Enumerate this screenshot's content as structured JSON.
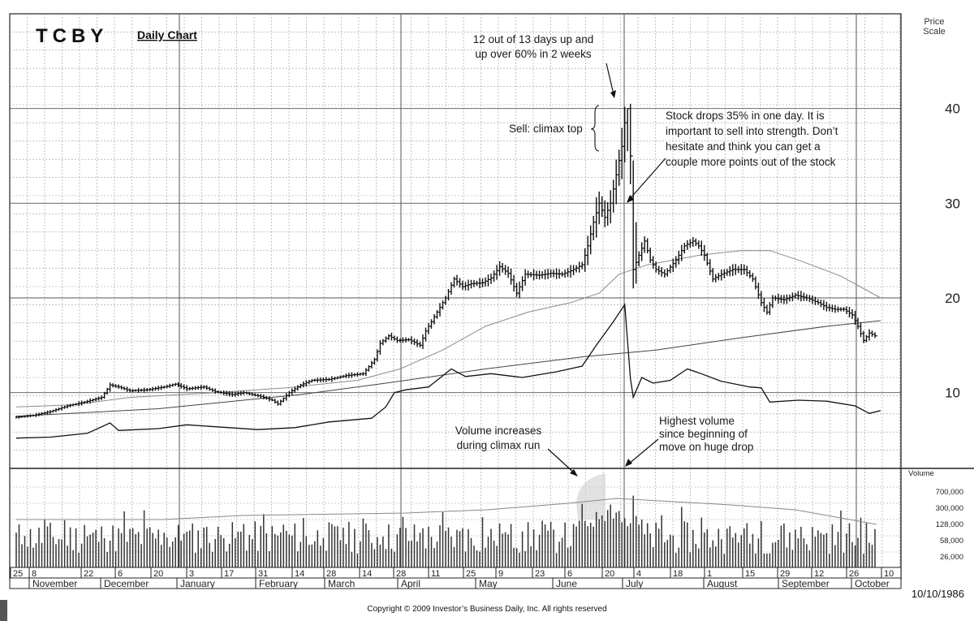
{
  "header": {
    "ticker": "TCBY",
    "chart_name": "Daily Chart",
    "price_scale_label": "Price Scale",
    "volume_label": "Volume"
  },
  "footer": {
    "date_stamp": "10/10/1986",
    "copyright": "Copyright © 2009 Investor’s Business Daily, Inc. All rights reserved"
  },
  "annotations": {
    "climax_note": [
      "12 out of 13 days up and",
      "up over 60% in 2 weeks"
    ],
    "sell_note": "Sell: climax top",
    "drop_note": [
      "Stock drops 35% in one day. It is",
      "important to sell into strength. Don’t",
      "hesitate and think you can get a",
      "couple more points out of the stock"
    ],
    "volume_note": [
      "Volume increases",
      "during climax run"
    ],
    "highest_volume_note": [
      "Highest volume",
      "since beginning of",
      "move on huge drop"
    ]
  },
  "chart_data": {
    "type": "ohlc-volume",
    "title": "TCBY Daily Chart",
    "price_axis": {
      "label": "Price Scale",
      "ticks": [
        10,
        20,
        30,
        40
      ],
      "range": [
        2,
        50
      ]
    },
    "volume_axis": {
      "label": "Volume",
      "ticks": [
        {
          "label": "700,000",
          "value": 700000
        },
        {
          "label": "300,000",
          "value": 300000
        },
        {
          "label": "128,000",
          "value": 128000
        },
        {
          "label": "58,000",
          "value": 58000
        },
        {
          "label": "26,000",
          "value": 26000
        }
      ]
    },
    "date_ticks": [
      "25",
      "8",
      "22",
      "6",
      "20",
      "3",
      "17",
      "31",
      "14",
      "28",
      "14",
      "28",
      "11",
      "25",
      "9",
      "23",
      "6",
      "20",
      "4",
      "18",
      "1",
      "15",
      "29",
      "12",
      "26",
      "10"
    ],
    "months": [
      "November",
      "December",
      "January",
      "February",
      "March",
      "April",
      "May",
      "June",
      "July",
      "August",
      "September",
      "October"
    ],
    "price_path": [
      [
        0,
        7.4
      ],
      [
        6,
        7.6
      ],
      [
        12,
        8.0
      ],
      [
        18,
        8.6
      ],
      [
        24,
        9.0
      ],
      [
        30,
        9.5
      ],
      [
        33,
        10.8
      ],
      [
        36,
        10.6
      ],
      [
        40,
        10.2
      ],
      [
        46,
        10.3
      ],
      [
        52,
        10.6
      ],
      [
        56,
        10.9
      ],
      [
        60,
        10.4
      ],
      [
        66,
        10.6
      ],
      [
        70,
        10.1
      ],
      [
        76,
        9.8
      ],
      [
        80,
        10.0
      ],
      [
        86,
        9.6
      ],
      [
        90,
        9.2
      ],
      [
        92,
        8.8
      ],
      [
        96,
        10.0
      ],
      [
        100,
        10.8
      ],
      [
        104,
        11.3
      ],
      [
        110,
        11.4
      ],
      [
        116,
        11.8
      ],
      [
        122,
        12.0
      ],
      [
        126,
        13.5
      ],
      [
        128,
        15.2
      ],
      [
        131,
        16.0
      ],
      [
        134,
        15.5
      ],
      [
        138,
        15.6
      ],
      [
        142,
        15.0
      ],
      [
        144,
        16.5
      ],
      [
        148,
        18.5
      ],
      [
        151,
        20.0
      ],
      [
        154,
        22.0
      ],
      [
        157,
        21.2
      ],
      [
        160,
        21.5
      ],
      [
        164,
        21.6
      ],
      [
        167,
        22.1
      ],
      [
        170,
        23.3
      ],
      [
        173,
        22.6
      ],
      [
        176,
        20.5
      ],
      [
        179,
        22.5
      ],
      [
        184,
        22.4
      ],
      [
        188,
        22.6
      ],
      [
        192,
        22.5
      ],
      [
        196,
        23.0
      ],
      [
        199,
        23.5
      ],
      [
        201,
        25.5
      ],
      [
        203,
        28.0
      ],
      [
        205,
        30.0
      ],
      [
        207,
        28.5
      ],
      [
        209,
        30.0
      ],
      [
        211,
        33.0
      ],
      [
        213,
        36.0
      ],
      [
        214,
        38.5
      ],
      [
        215,
        40.0
      ],
      [
        216,
        35.0
      ],
      [
        217,
        23.0
      ],
      [
        219,
        24.5
      ],
      [
        221,
        26.0
      ],
      [
        223,
        24.0
      ],
      [
        225,
        23.0
      ],
      [
        228,
        22.5
      ],
      [
        232,
        24.0
      ],
      [
        235,
        25.5
      ],
      [
        238,
        26.0
      ],
      [
        240,
        25.5
      ],
      [
        242,
        24.5
      ],
      [
        245,
        22.0
      ],
      [
        248,
        22.5
      ],
      [
        252,
        23.0
      ],
      [
        256,
        23.0
      ],
      [
        259,
        22.0
      ],
      [
        262,
        19.5
      ],
      [
        264,
        18.5
      ],
      [
        266,
        20.0
      ],
      [
        270,
        19.8
      ],
      [
        274,
        20.3
      ],
      [
        278,
        20.0
      ],
      [
        282,
        19.5
      ],
      [
        285,
        19.0
      ],
      [
        288,
        18.8
      ],
      [
        291,
        18.8
      ],
      [
        294,
        18.2
      ],
      [
        296,
        17.0
      ],
      [
        298,
        15.5
      ],
      [
        300,
        16.3
      ],
      [
        302,
        16.0
      ]
    ],
    "ma_short_path": [
      [
        0,
        8.5
      ],
      [
        20,
        8.7
      ],
      [
        40,
        9.5
      ],
      [
        70,
        10.0
      ],
      [
        95,
        10.5
      ],
      [
        120,
        11.3
      ],
      [
        135,
        12.5
      ],
      [
        150,
        14.5
      ],
      [
        165,
        17.0
      ],
      [
        180,
        18.5
      ],
      [
        195,
        19.5
      ],
      [
        205,
        20.5
      ],
      [
        212,
        22.5
      ],
      [
        222,
        23.5
      ],
      [
        240,
        24.5
      ],
      [
        255,
        25.0
      ],
      [
        265,
        25.0
      ],
      [
        275,
        24.0
      ],
      [
        290,
        22.3
      ],
      [
        304,
        20.0
      ]
    ],
    "ma_long_path": [
      [
        0,
        7.5
      ],
      [
        50,
        8.3
      ],
      [
        100,
        9.8
      ],
      [
        130,
        11.0
      ],
      [
        165,
        12.5
      ],
      [
        200,
        13.8
      ],
      [
        225,
        14.5
      ],
      [
        255,
        15.8
      ],
      [
        285,
        17.0
      ],
      [
        304,
        17.6
      ]
    ],
    "rs_line_path": [
      [
        0,
        5.2
      ],
      [
        12,
        5.3
      ],
      [
        25,
        5.7
      ],
      [
        33,
        6.8
      ],
      [
        36,
        6.0
      ],
      [
        50,
        6.2
      ],
      [
        60,
        6.6
      ],
      [
        70,
        6.4
      ],
      [
        85,
        6.1
      ],
      [
        98,
        6.3
      ],
      [
        110,
        6.9
      ],
      [
        125,
        7.3
      ],
      [
        130,
        8.5
      ],
      [
        133,
        10.0
      ],
      [
        137,
        10.3
      ],
      [
        145,
        10.6
      ],
      [
        153,
        12.5
      ],
      [
        158,
        11.7
      ],
      [
        167,
        12.0
      ],
      [
        178,
        11.6
      ],
      [
        190,
        12.2
      ],
      [
        199,
        12.8
      ],
      [
        204,
        15.0
      ],
      [
        210,
        17.5
      ],
      [
        214,
        19.3
      ],
      [
        216,
        11.5
      ],
      [
        217,
        9.5
      ],
      [
        220,
        11.6
      ],
      [
        224,
        11.0
      ],
      [
        230,
        11.3
      ],
      [
        236,
        12.5
      ],
      [
        240,
        12.1
      ],
      [
        248,
        11.2
      ],
      [
        258,
        10.6
      ],
      [
        262,
        10.5
      ],
      [
        265,
        9.0
      ],
      [
        275,
        9.2
      ],
      [
        285,
        9.1
      ],
      [
        295,
        8.6
      ],
      [
        300,
        7.8
      ],
      [
        304,
        8.1
      ]
    ],
    "volume_bars_note": "Volume histogram; average ~300,000, peaks near 700,000+ during late June climax and July 1 drop."
  }
}
